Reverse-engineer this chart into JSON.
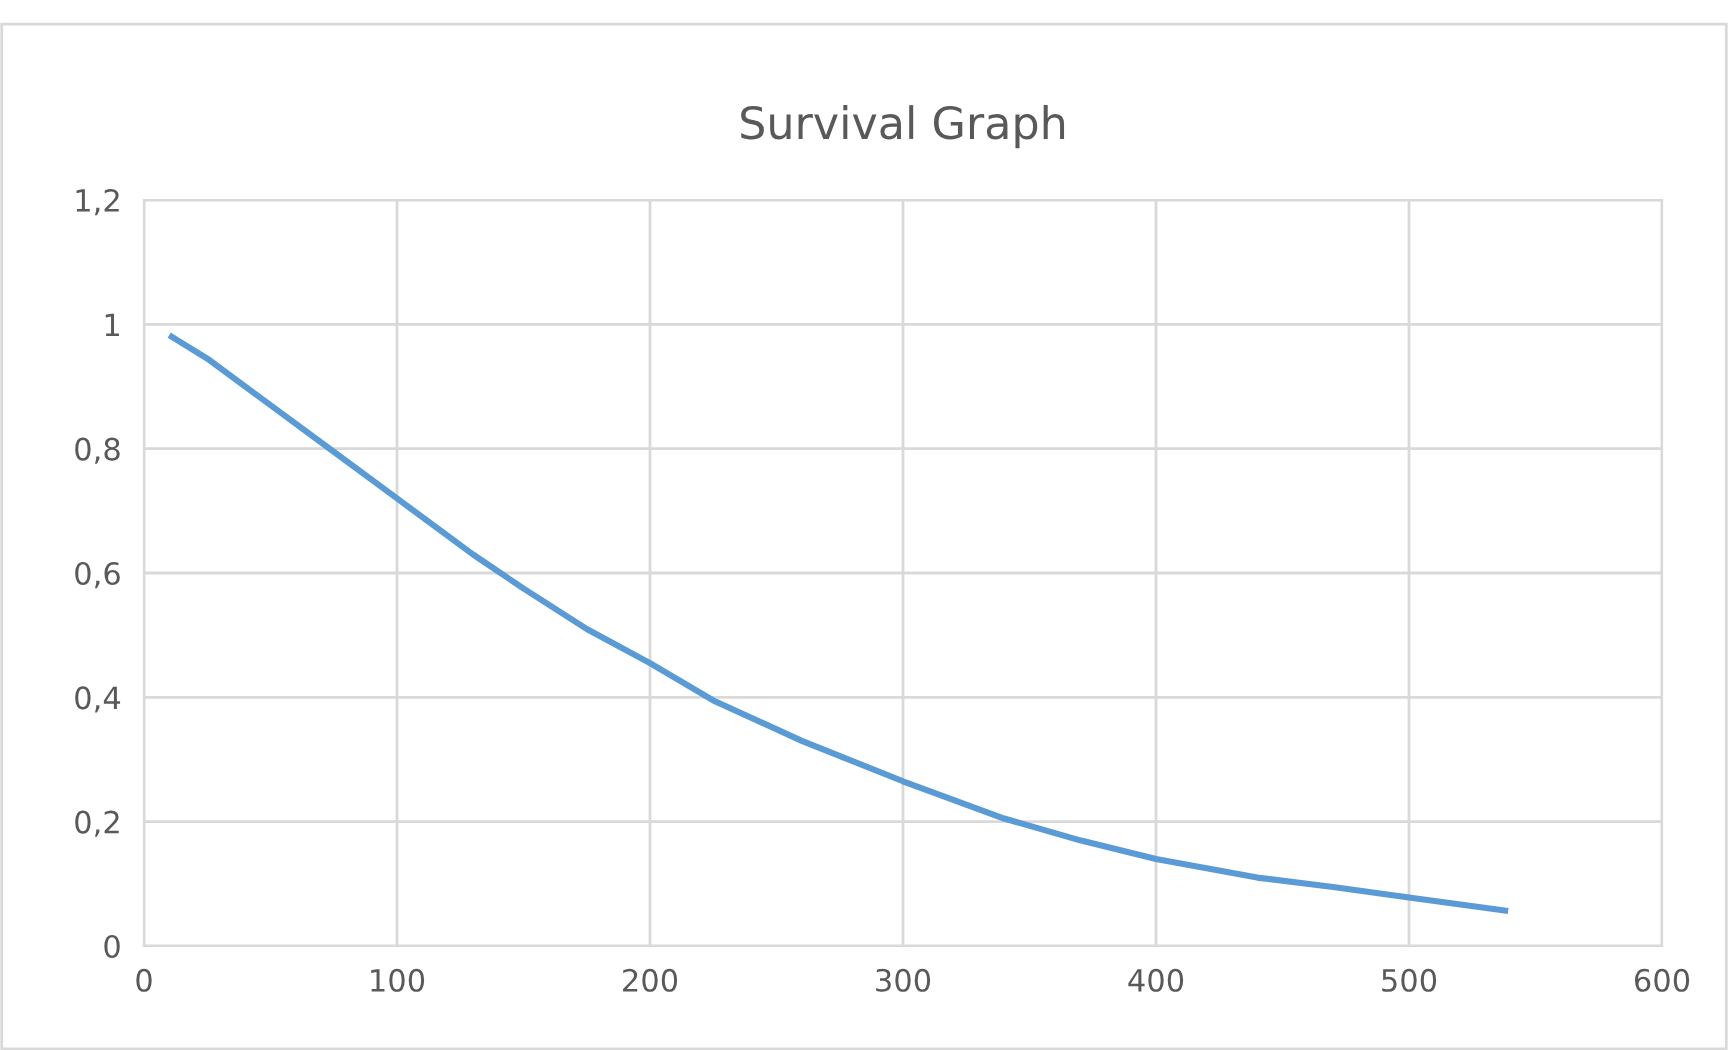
{
  "chart_data": {
    "type": "line",
    "title": "Survival Graph",
    "x": [
      11,
      25,
      50,
      75,
      100,
      130,
      150,
      175,
      200,
      225,
      260,
      300,
      340,
      370,
      400,
      440,
      470,
      500,
      538
    ],
    "series": [
      {
        "color": "#5b9bd5",
        "values": [
          0.98,
          0.945,
          0.87,
          0.795,
          0.72,
          0.63,
          0.575,
          0.51,
          0.455,
          0.395,
          0.33,
          0.265,
          0.205,
          0.17,
          0.14,
          0.11,
          0.095,
          0.078,
          0.057
        ]
      }
    ],
    "xlim": [
      0,
      600
    ],
    "xticks": [
      0,
      100,
      200,
      300,
      400,
      500,
      600
    ],
    "ylim": [
      0,
      1.2
    ],
    "yticks": [
      0,
      {
        "value": 0.2,
        "label": "0,2"
      },
      {
        "value": 0.4,
        "label": "0,4"
      },
      {
        "value": 0.6,
        "label": "0,6"
      },
      {
        "value": 0.8,
        "label": "0,8"
      },
      1,
      {
        "value": 1.2,
        "label": "1,2"
      }
    ],
    "grid": true,
    "legend": false,
    "marker": "none",
    "line_style": "solid"
  }
}
